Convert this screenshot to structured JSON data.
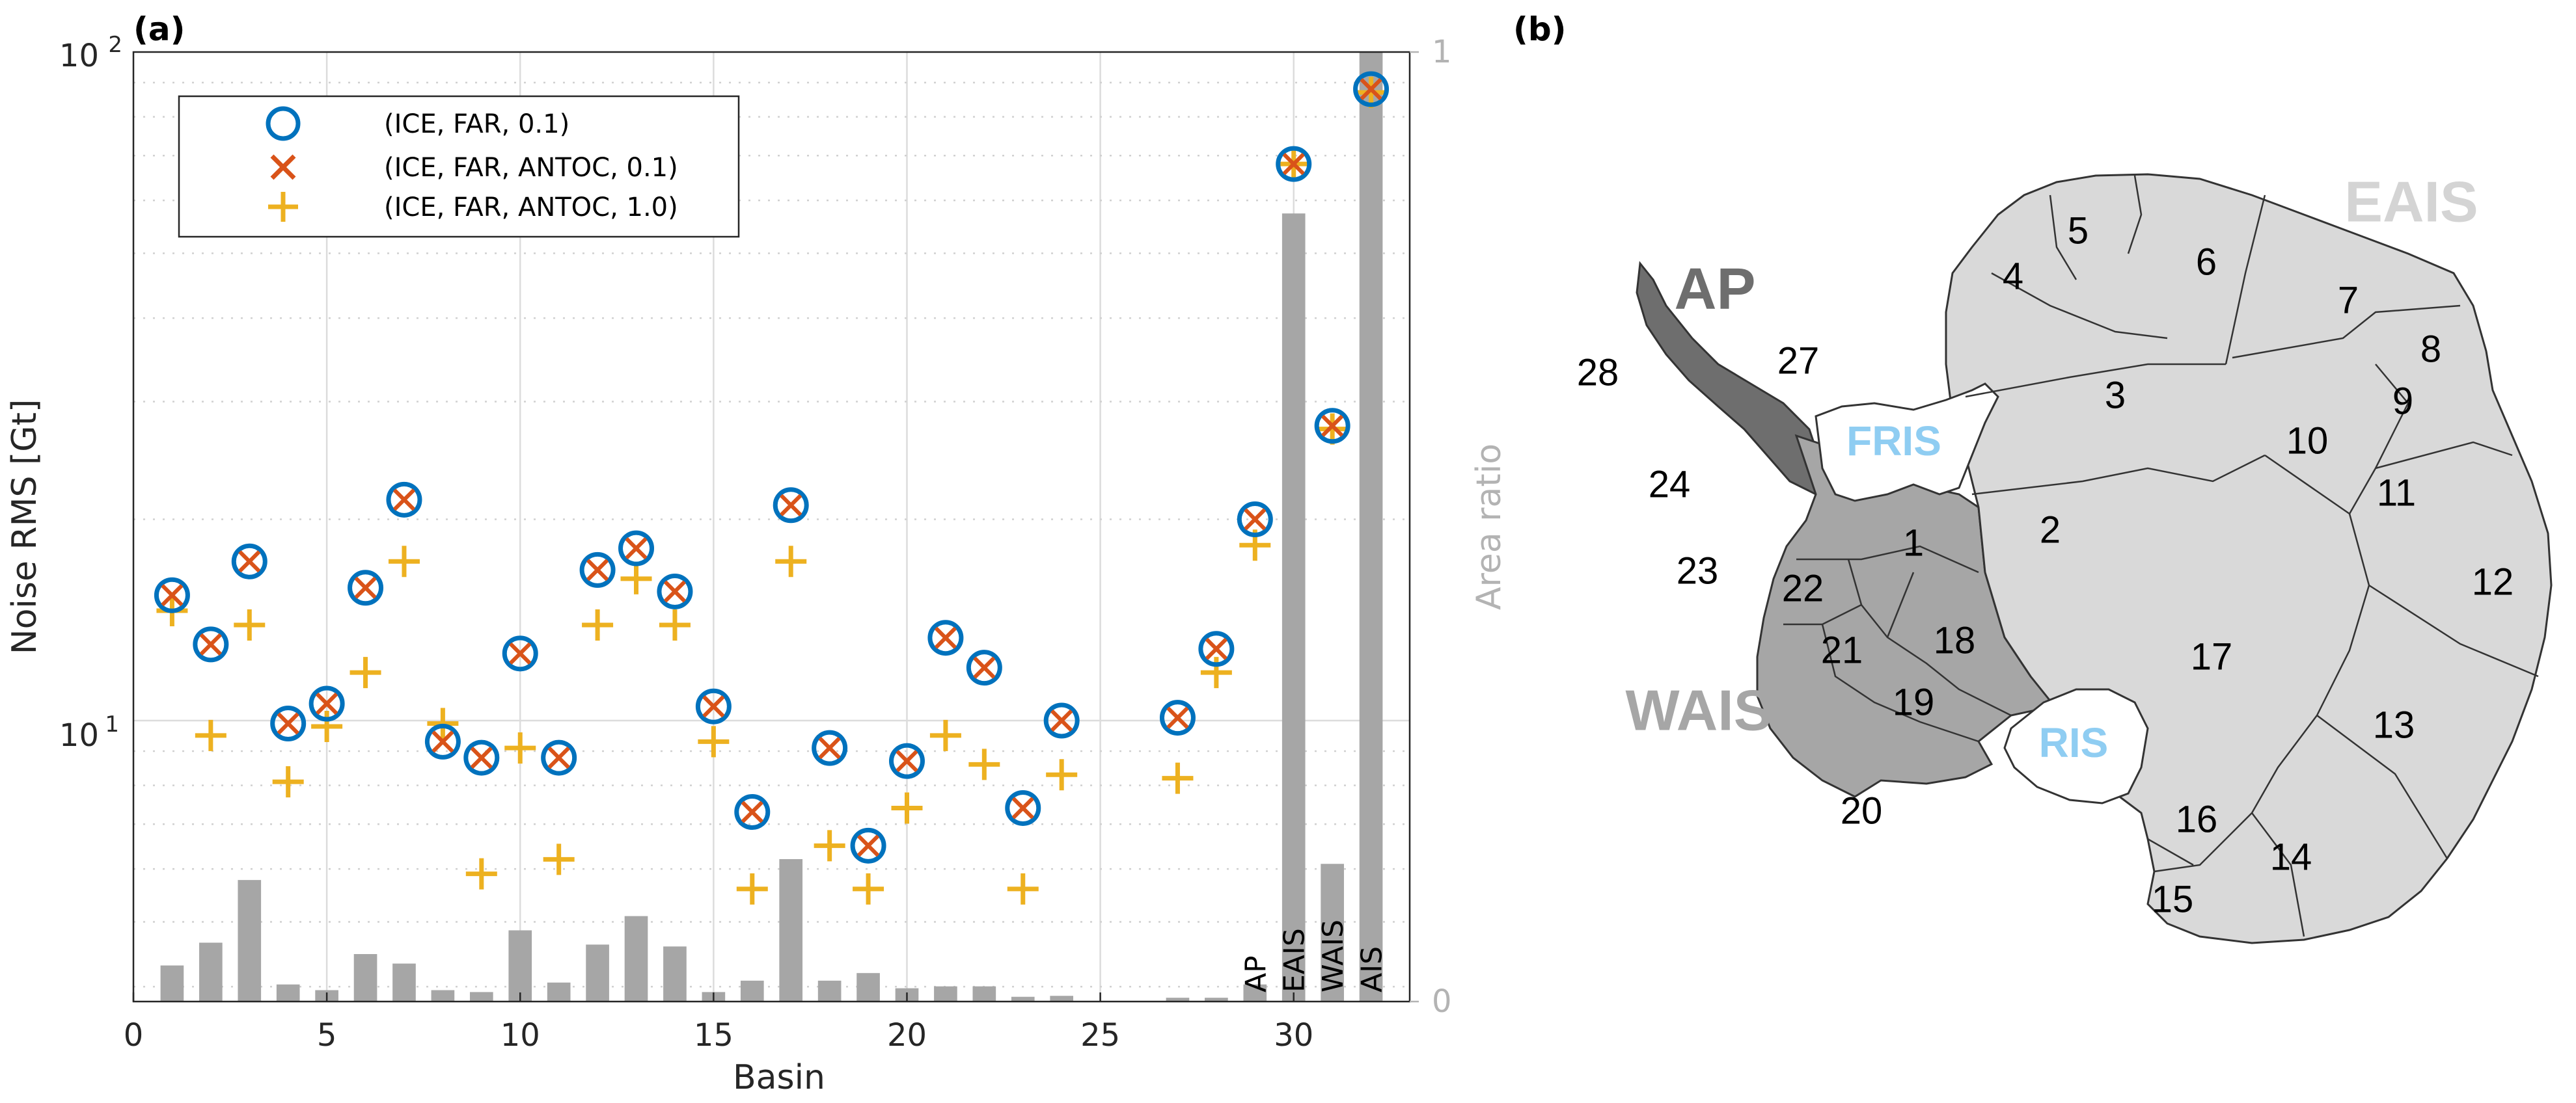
{
  "panel_a_label": "(a)",
  "panel_b_label": "(b)",
  "chart_data": {
    "type": "scatter",
    "xlabel": "Basin",
    "ylabel": "Noise RMS [Gt]",
    "ylabel_right": "Area ratio",
    "xlim": [
      0,
      33
    ],
    "ylim": [
      3.8,
      100
    ],
    "yscale": "log",
    "ylim_right": [
      0,
      1
    ],
    "x_ticks": [
      0,
      5,
      10,
      15,
      20,
      25,
      30
    ],
    "y_tick_labels": {
      "top": "10",
      "top_exp": "2",
      "mid": "10",
      "mid_exp": "1"
    },
    "y_right_ticks": [
      "1",
      "0"
    ],
    "grid": true,
    "legend_position": "top-left",
    "bar_labels": [
      {
        "x": 29,
        "label": "AP"
      },
      {
        "x": 30,
        "label": "EAIS"
      },
      {
        "x": 31,
        "label": "WAIS"
      },
      {
        "x": 32,
        "label": "AIS"
      }
    ],
    "series": [
      {
        "name": "(ICE, FAR, 0.1)",
        "marker": "circle",
        "color": "#0072BD",
        "points": [
          [
            1,
            15.4
          ],
          [
            2,
            13.0
          ],
          [
            3,
            17.3
          ],
          [
            4,
            9.9
          ],
          [
            5,
            10.6
          ],
          [
            6,
            15.8
          ],
          [
            7,
            21.4
          ],
          [
            8,
            9.3
          ],
          [
            9,
            8.8
          ],
          [
            10,
            12.6
          ],
          [
            11,
            8.8
          ],
          [
            12,
            16.8
          ],
          [
            13,
            18.1
          ],
          [
            14,
            15.6
          ],
          [
            15,
            10.5
          ],
          [
            16,
            7.3
          ],
          [
            17,
            21.0
          ],
          [
            18,
            9.1
          ],
          [
            19,
            6.5
          ],
          [
            20,
            8.7
          ],
          [
            21,
            13.3
          ],
          [
            22,
            12.0
          ],
          [
            23,
            7.4
          ],
          [
            24,
            10.0
          ],
          [
            27,
            10.1
          ],
          [
            28,
            12.8
          ],
          [
            29,
            20.0
          ],
          [
            30,
            68.0
          ],
          [
            31,
            27.6
          ],
          [
            32,
            88.0
          ]
        ]
      },
      {
        "name": "(ICE, FAR, ANTOC, 0.1)",
        "marker": "x",
        "color": "#D95319",
        "points": [
          [
            1,
            15.4
          ],
          [
            2,
            13.0
          ],
          [
            3,
            17.3
          ],
          [
            4,
            9.9
          ],
          [
            5,
            10.6
          ],
          [
            6,
            15.8
          ],
          [
            7,
            21.4
          ],
          [
            8,
            9.3
          ],
          [
            9,
            8.8
          ],
          [
            10,
            12.6
          ],
          [
            11,
            8.8
          ],
          [
            12,
            16.8
          ],
          [
            13,
            18.1
          ],
          [
            14,
            15.6
          ],
          [
            15,
            10.5
          ],
          [
            16,
            7.3
          ],
          [
            17,
            21.0
          ],
          [
            18,
            9.1
          ],
          [
            19,
            6.5
          ],
          [
            20,
            8.7
          ],
          [
            21,
            13.3
          ],
          [
            22,
            12.0
          ],
          [
            23,
            7.4
          ],
          [
            24,
            10.0
          ],
          [
            27,
            10.1
          ],
          [
            28,
            12.8
          ],
          [
            29,
            20.0
          ],
          [
            30,
            68.0
          ],
          [
            31,
            27.6
          ],
          [
            32,
            88.0
          ]
        ]
      },
      {
        "name": "(ICE, FAR, ANTOC, 1.0)",
        "marker": "plus",
        "color": "#EDB120",
        "points": [
          [
            1,
            14.6
          ],
          [
            2,
            9.5
          ],
          [
            3,
            13.9
          ],
          [
            4,
            8.1
          ],
          [
            5,
            9.8
          ],
          [
            6,
            11.8
          ],
          [
            7,
            17.3
          ],
          [
            8,
            9.9
          ],
          [
            9,
            5.9
          ],
          [
            10,
            9.1
          ],
          [
            11,
            6.2
          ],
          [
            12,
            13.9
          ],
          [
            13,
            16.3
          ],
          [
            14,
            13.9
          ],
          [
            15,
            9.3
          ],
          [
            16,
            5.6
          ],
          [
            17,
            17.3
          ],
          [
            18,
            6.5
          ],
          [
            19,
            5.6
          ],
          [
            20,
            7.4
          ],
          [
            21,
            9.5
          ],
          [
            22,
            8.6
          ],
          [
            23,
            5.6
          ],
          [
            24,
            8.3
          ],
          [
            27,
            8.2
          ],
          [
            28,
            11.8
          ],
          [
            29,
            18.3
          ],
          [
            30,
            68.0
          ],
          [
            31,
            27.3
          ],
          [
            32,
            87.0
          ]
        ]
      }
    ],
    "area_ratio_bars": [
      {
        "x": 1,
        "value": 0.038
      },
      {
        "x": 2,
        "value": 0.062
      },
      {
        "x": 3,
        "value": 0.128
      },
      {
        "x": 4,
        "value": 0.018
      },
      {
        "x": 5,
        "value": 0.012
      },
      {
        "x": 6,
        "value": 0.05
      },
      {
        "x": 7,
        "value": 0.04
      },
      {
        "x": 8,
        "value": 0.012
      },
      {
        "x": 9,
        "value": 0.01
      },
      {
        "x": 10,
        "value": 0.075
      },
      {
        "x": 11,
        "value": 0.02
      },
      {
        "x": 12,
        "value": 0.06
      },
      {
        "x": 13,
        "value": 0.09
      },
      {
        "x": 14,
        "value": 0.058
      },
      {
        "x": 15,
        "value": 0.01
      },
      {
        "x": 16,
        "value": 0.022
      },
      {
        "x": 17,
        "value": 0.15
      },
      {
        "x": 18,
        "value": 0.022
      },
      {
        "x": 19,
        "value": 0.03
      },
      {
        "x": 20,
        "value": 0.014
      },
      {
        "x": 21,
        "value": 0.016
      },
      {
        "x": 22,
        "value": 0.016
      },
      {
        "x": 23,
        "value": 0.005
      },
      {
        "x": 24,
        "value": 0.006
      },
      {
        "x": 27,
        "value": 0.004
      },
      {
        "x": 28,
        "value": 0.004
      },
      {
        "x": 29,
        "value": 0.018
      },
      {
        "x": 30,
        "value": 0.83
      },
      {
        "x": 31,
        "value": 0.145
      },
      {
        "x": 32,
        "value": 1.0
      }
    ]
  },
  "map": {
    "regions": {
      "ap": "AP",
      "wais": "WAIS",
      "eais": "EAIS",
      "fris": "FRIS",
      "ris": "RIS"
    },
    "basins": [
      "1",
      "2",
      "3",
      "4",
      "5",
      "6",
      "7",
      "8",
      "9",
      "10",
      "11",
      "12",
      "13",
      "14",
      "15",
      "16",
      "17",
      "18",
      "19",
      "20",
      "21",
      "22",
      "23",
      "24",
      "27",
      "28"
    ],
    "colors": {
      "ap": "#6e6e6e",
      "wais": "#a6a6a6",
      "eais": "#d9d9d9",
      "ice_shelf": "#ffffff",
      "shelf_label": "#8fcdf2",
      "region_wais": "#a6a6a6",
      "region_eais": "#d4d4d4",
      "region_ap": "#6e6e6e"
    }
  }
}
